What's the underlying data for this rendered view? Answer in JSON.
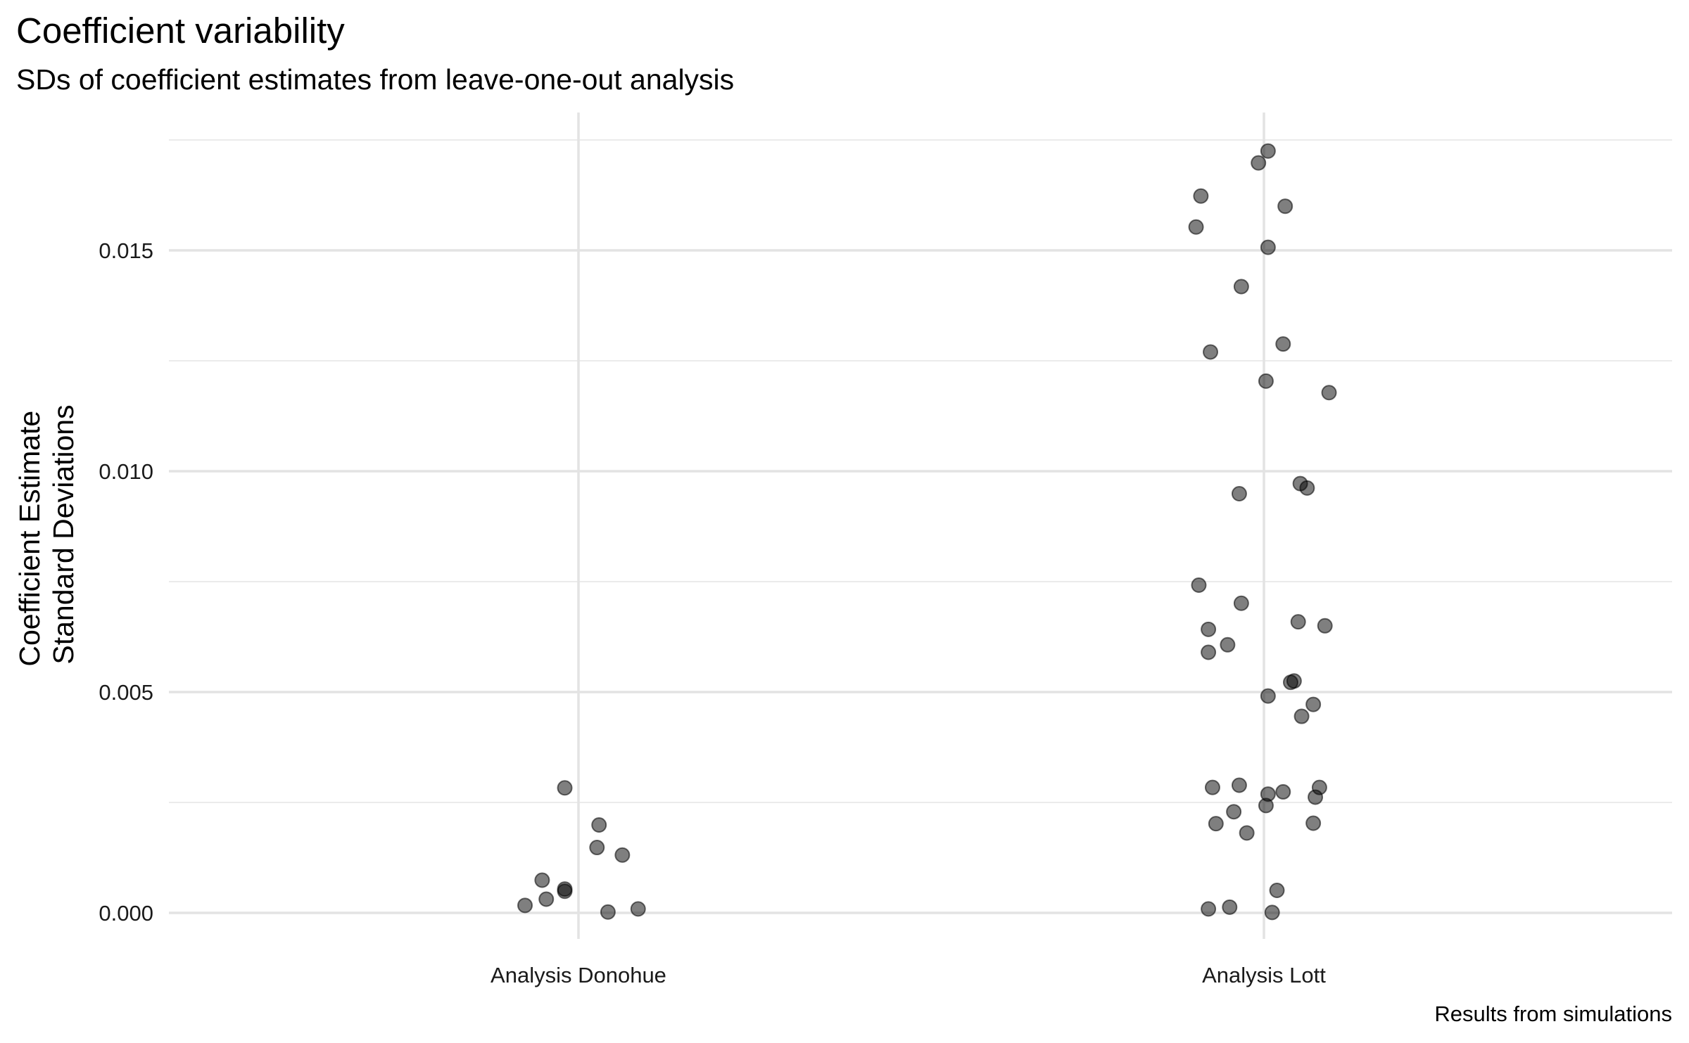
{
  "chart_data": {
    "type": "scatter",
    "title": "Coefficient variability",
    "subtitle": "SDs of coefficient estimates from leave-one-out analysis",
    "ylabel": [
      "Coefficient Estimate",
      "Standard Deviations"
    ],
    "xlabel": "",
    "caption": "Results from simulations",
    "categories": [
      "Analysis Donohue",
      "Analysis Lott"
    ],
    "y_ticks": [
      0.0,
      0.005,
      0.01,
      0.015
    ],
    "y_tick_labels": [
      "0.000",
      "0.005",
      "0.010",
      "0.015"
    ],
    "ylim": [
      -0.0008,
      0.0178
    ],
    "grid": "on",
    "point_color": "#000000",
    "point_opacity": 0.5,
    "points": [
      {
        "category": "Analysis Donohue",
        "jitter": -0.02,
        "y": 0.00283
      },
      {
        "category": "Analysis Donohue",
        "jitter": 0.03,
        "y": 0.00199
      },
      {
        "category": "Analysis Donohue",
        "jitter": 0.027,
        "y": 0.00148
      },
      {
        "category": "Analysis Donohue",
        "jitter": 0.064,
        "y": 0.00131
      },
      {
        "category": "Analysis Donohue",
        "jitter": -0.053,
        "y": 0.00074
      },
      {
        "category": "Analysis Donohue",
        "jitter": -0.02,
        "y": 0.00054
      },
      {
        "category": "Analysis Donohue",
        "jitter": -0.02,
        "y": 0.00049
      },
      {
        "category": "Analysis Donohue",
        "jitter": -0.047,
        "y": 0.00031
      },
      {
        "category": "Analysis Donohue",
        "jitter": -0.078,
        "y": 0.00017
      },
      {
        "category": "Analysis Donohue",
        "jitter": 0.087,
        "y": 9e-05
      },
      {
        "category": "Analysis Donohue",
        "jitter": 0.043,
        "y": 2e-05
      },
      {
        "category": "Analysis Lott",
        "jitter": 0.006,
        "y": 0.01725
      },
      {
        "category": "Analysis Lott",
        "jitter": -0.008,
        "y": 0.01698
      },
      {
        "category": "Analysis Lott",
        "jitter": -0.092,
        "y": 0.01623
      },
      {
        "category": "Analysis Lott",
        "jitter": 0.031,
        "y": 0.016
      },
      {
        "category": "Analysis Lott",
        "jitter": -0.099,
        "y": 0.01553
      },
      {
        "category": "Analysis Lott",
        "jitter": 0.006,
        "y": 0.01507
      },
      {
        "category": "Analysis Lott",
        "jitter": -0.033,
        "y": 0.01418
      },
      {
        "category": "Analysis Lott",
        "jitter": 0.028,
        "y": 0.01288
      },
      {
        "category": "Analysis Lott",
        "jitter": -0.078,
        "y": 0.0127
      },
      {
        "category": "Analysis Lott",
        "jitter": 0.003,
        "y": 0.01204
      },
      {
        "category": "Analysis Lott",
        "jitter": 0.095,
        "y": 0.01178
      },
      {
        "category": "Analysis Lott",
        "jitter": 0.053,
        "y": 0.00972
      },
      {
        "category": "Analysis Lott",
        "jitter": 0.063,
        "y": 0.00962
      },
      {
        "category": "Analysis Lott",
        "jitter": -0.036,
        "y": 0.00949
      },
      {
        "category": "Analysis Lott",
        "jitter": -0.095,
        "y": 0.00742
      },
      {
        "category": "Analysis Lott",
        "jitter": -0.033,
        "y": 0.00701
      },
      {
        "category": "Analysis Lott",
        "jitter": 0.05,
        "y": 0.00659
      },
      {
        "category": "Analysis Lott",
        "jitter": 0.089,
        "y": 0.0065
      },
      {
        "category": "Analysis Lott",
        "jitter": -0.081,
        "y": 0.00642
      },
      {
        "category": "Analysis Lott",
        "jitter": -0.053,
        "y": 0.00607
      },
      {
        "category": "Analysis Lott",
        "jitter": -0.081,
        "y": 0.0059
      },
      {
        "category": "Analysis Lott",
        "jitter": 0.044,
        "y": 0.00525
      },
      {
        "category": "Analysis Lott",
        "jitter": 0.039,
        "y": 0.00522
      },
      {
        "category": "Analysis Lott",
        "jitter": 0.006,
        "y": 0.00491
      },
      {
        "category": "Analysis Lott",
        "jitter": 0.072,
        "y": 0.00472
      },
      {
        "category": "Analysis Lott",
        "jitter": 0.055,
        "y": 0.00445
      },
      {
        "category": "Analysis Lott",
        "jitter": -0.075,
        "y": 0.00284
      },
      {
        "category": "Analysis Lott",
        "jitter": -0.036,
        "y": 0.00289
      },
      {
        "category": "Analysis Lott",
        "jitter": 0.081,
        "y": 0.00284
      },
      {
        "category": "Analysis Lott",
        "jitter": 0.028,
        "y": 0.00274
      },
      {
        "category": "Analysis Lott",
        "jitter": 0.006,
        "y": 0.00269
      },
      {
        "category": "Analysis Lott",
        "jitter": 0.075,
        "y": 0.00262
      },
      {
        "category": "Analysis Lott",
        "jitter": 0.003,
        "y": 0.00243
      },
      {
        "category": "Analysis Lott",
        "jitter": -0.044,
        "y": 0.00229
      },
      {
        "category": "Analysis Lott",
        "jitter": -0.07,
        "y": 0.00202
      },
      {
        "category": "Analysis Lott",
        "jitter": 0.072,
        "y": 0.00203
      },
      {
        "category": "Analysis Lott",
        "jitter": -0.025,
        "y": 0.00181
      },
      {
        "category": "Analysis Lott",
        "jitter": 0.019,
        "y": 0.00051
      },
      {
        "category": "Analysis Lott",
        "jitter": -0.05,
        "y": 0.00013
      },
      {
        "category": "Analysis Lott",
        "jitter": -0.081,
        "y": 9e-05
      },
      {
        "category": "Analysis Lott",
        "jitter": 0.012,
        "y": 1e-05
      }
    ]
  }
}
